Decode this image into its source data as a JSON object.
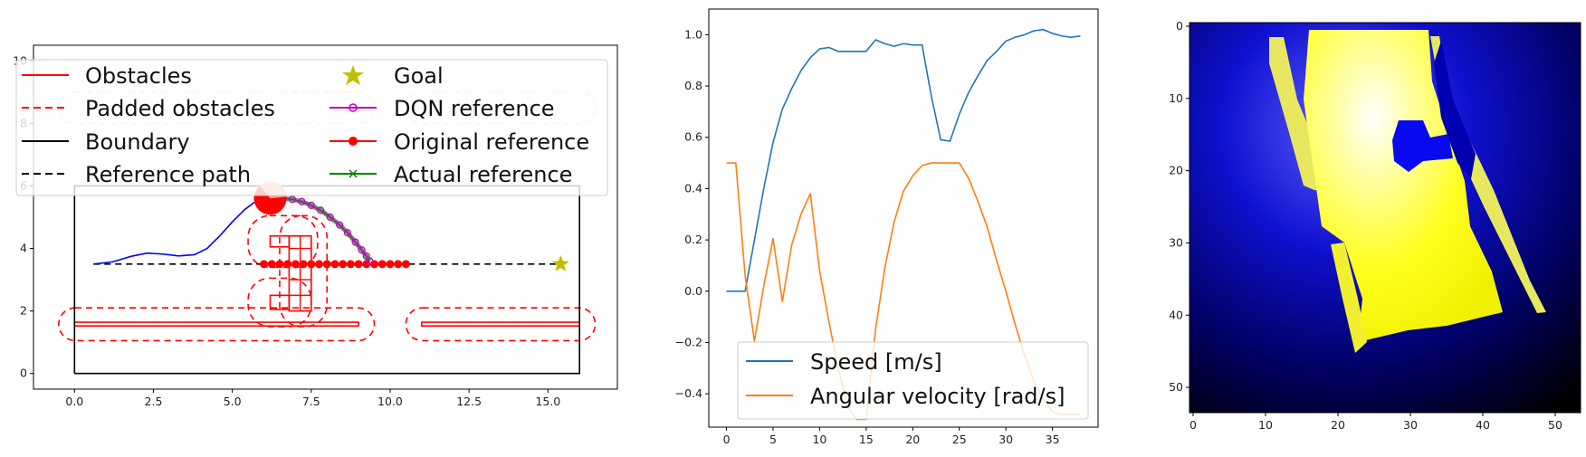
{
  "chart_data": [
    {
      "type": "line",
      "panel": "path-map",
      "xlim": [
        -1.3,
        17.2
      ],
      "ylim": [
        -0.5,
        10.5
      ],
      "x_ticks": [
        0.0,
        2.5,
        5.0,
        7.5,
        10.0,
        12.5,
        15.0
      ],
      "x_tick_labels": [
        "0.0",
        "2.5",
        "5.0",
        "7.5",
        "10.0",
        "12.5",
        "15.0"
      ],
      "y_ticks": [
        0,
        2,
        4,
        6,
        8,
        10
      ],
      "y_tick_labels": [
        "0",
        "2",
        "4",
        "6",
        "8",
        "10"
      ],
      "legend": {
        "position": "top",
        "columns": 2,
        "entries": [
          "Obstacles",
          "Padded obstacles",
          "Boundary",
          "Reference path",
          "Goal",
          "DQN reference",
          "Original reference",
          "Actual reference"
        ]
      },
      "colors": {
        "obstacles": "#ff0000",
        "padded": "#ff0000",
        "boundary": "#000000",
        "reference_path": "#000000",
        "goal": "#bfbf00",
        "dqn": "#bf00bf",
        "original": "#ff0000",
        "actual": "#008000",
        "trajectory": "#0000ff",
        "robot": "#ff0000",
        "robot_wedge": "#f4a582"
      },
      "boundary": [
        [
          0,
          0
        ],
        [
          16,
          0
        ],
        [
          16,
          6
        ],
        [
          0,
          6
        ],
        [
          0,
          0
        ]
      ],
      "reference_path": {
        "x": [
          0.6,
          15.5
        ],
        "y": [
          3.5,
          3.5
        ]
      },
      "goal": {
        "x": 15.4,
        "y": 3.5
      },
      "obstacles": [
        {
          "x": [
            0.0,
            9.0
          ],
          "y": [
            1.52,
            1.64
          ]
        },
        {
          "x": [
            11.0,
            16.0
          ],
          "y": [
            1.52,
            1.64
          ]
        },
        {
          "x": [
            6.2,
            6.8
          ],
          "y": [
            4.05,
            4.4
          ]
        },
        {
          "x": [
            6.8,
            7.5
          ],
          "y": [
            2.0,
            4.4
          ]
        },
        {
          "x": [
            6.2,
            6.8
          ],
          "y": [
            2.05,
            2.5
          ]
        }
      ],
      "padded_obstacles": [
        {
          "x": [
            -0.5,
            9.5
          ],
          "y": [
            1.05,
            2.1
          ]
        },
        {
          "x": [
            10.5,
            16.5
          ],
          "y": [
            1.05,
            2.1
          ]
        },
        {
          "x": [
            5.5,
            7.7
          ],
          "y": [
            3.4,
            5.05
          ]
        },
        {
          "x": [
            6.5,
            8.0
          ],
          "y": [
            1.5,
            5.05
          ]
        },
        {
          "x": [
            5.5,
            7.5
          ],
          "y": [
            1.5,
            3.05
          ]
        },
        {
          "x": [
            -0.5,
            9.5
          ],
          "y": [
            8.0,
            9.0
          ]
        },
        {
          "x": [
            10.5,
            16.5
          ],
          "y": [
            8.0,
            9.0
          ]
        }
      ],
      "trajectory": {
        "x": [
          0.6,
          1.2,
          1.8,
          2.3,
          2.8,
          3.3,
          3.8,
          4.2,
          4.6,
          5.0,
          5.4,
          5.8,
          6.1
        ],
        "y": [
          3.5,
          3.57,
          3.75,
          3.85,
          3.82,
          3.76,
          3.8,
          4.0,
          4.4,
          4.85,
          5.25,
          5.55,
          5.65
        ]
      },
      "robot": {
        "x": 6.2,
        "y": 5.6
      },
      "dqn_reference": {
        "x": [
          6.6,
          6.9,
          7.2,
          7.5,
          7.8,
          8.1,
          8.4,
          8.65,
          8.9,
          9.1,
          9.25,
          9.35
        ],
        "y": [
          5.6,
          5.57,
          5.5,
          5.38,
          5.22,
          5.0,
          4.75,
          4.5,
          4.2,
          3.95,
          3.75,
          3.6
        ]
      },
      "original_reference": {
        "x": [
          6.0,
          6.25,
          6.5,
          6.75,
          7.0,
          7.25,
          7.5,
          7.75,
          8.0,
          8.25,
          8.5,
          8.75,
          9.0,
          9.25,
          9.5,
          9.75,
          10.0,
          10.25,
          10.5
        ],
        "y": [
          3.5,
          3.5,
          3.5,
          3.5,
          3.5,
          3.5,
          3.5,
          3.5,
          3.5,
          3.5,
          3.5,
          3.5,
          3.5,
          3.5,
          3.5,
          3.5,
          3.5,
          3.5,
          3.5
        ]
      }
    },
    {
      "type": "line",
      "panel": "speed-profile",
      "xlim": [
        -1.9,
        39.9
      ],
      "ylim": [
        -0.53,
        1.1
      ],
      "x_ticks": [
        0,
        5,
        10,
        15,
        20,
        25,
        30,
        35
      ],
      "x_tick_labels": [
        "0",
        "5",
        "10",
        "15",
        "20",
        "25",
        "30",
        "35"
      ],
      "y_ticks": [
        -0.4,
        -0.2,
        0.0,
        0.2,
        0.4,
        0.6,
        0.8,
        1.0
      ],
      "y_tick_labels": [
        "−0.4",
        "−0.2",
        "0.0",
        "0.2",
        "0.4",
        "0.6",
        "0.8",
        "1.0"
      ],
      "legend": {
        "position": "lower-right"
      },
      "x": [
        0,
        1,
        2,
        3,
        4,
        5,
        6,
        7,
        8,
        9,
        10,
        11,
        12,
        13,
        14,
        15,
        16,
        17,
        18,
        19,
        20,
        21,
        22,
        23,
        24,
        25,
        26,
        27,
        28,
        29,
        30,
        31,
        32,
        33,
        34,
        35,
        36,
        37,
        38
      ],
      "series": [
        {
          "name": "Speed [m/s]",
          "color": "#1f77b4",
          "values": [
            0.0,
            0.0,
            0.0,
            0.2,
            0.4,
            0.58,
            0.71,
            0.79,
            0.86,
            0.91,
            0.945,
            0.95,
            0.935,
            0.935,
            0.935,
            0.935,
            0.98,
            0.965,
            0.955,
            0.965,
            0.96,
            0.96,
            0.76,
            0.59,
            0.585,
            0.69,
            0.775,
            0.84,
            0.9,
            0.935,
            0.975,
            0.99,
            1.0,
            1.015,
            1.02,
            1.005,
            0.995,
            0.99,
            0.995
          ]
        },
        {
          "name": "Angular velocity [rad/s]",
          "color": "#ff7f0e",
          "values": [
            0.5,
            0.5,
            0.06,
            -0.195,
            0.02,
            0.205,
            -0.04,
            0.18,
            0.3,
            0.38,
            0.08,
            -0.12,
            -0.3,
            -0.45,
            -0.5,
            -0.5,
            -0.15,
            0.09,
            0.27,
            0.39,
            0.45,
            0.49,
            0.5,
            0.5,
            0.5,
            0.5,
            0.44,
            0.35,
            0.25,
            0.12,
            0.0,
            -0.13,
            -0.25,
            -0.35,
            -0.42,
            -0.47,
            -0.48,
            -0.48,
            -0.48
          ]
        }
      ]
    },
    {
      "type": "heatmap",
      "panel": "occupancy-grid",
      "xlim": [
        -0.5,
        53.5
      ],
      "ylim": [
        53.5,
        -0.5
      ],
      "x_ticks": [
        0,
        10,
        20,
        30,
        40,
        50
      ],
      "x_tick_labels": [
        "0",
        "10",
        "20",
        "30",
        "40",
        "50"
      ],
      "y_ticks": [
        0,
        10,
        20,
        30,
        40,
        50
      ],
      "y_tick_labels": [
        "0",
        "10",
        "20",
        "30",
        "40",
        "50"
      ],
      "colormap": [
        "#000000",
        "#00007f",
        "#0000ff",
        "#8080ff",
        "#ffffff",
        "#ffff80",
        "#ffff00"
      ],
      "description_values": "free-space yellow region centred near column 30, row 15, with blue obstacle pocket"
    }
  ]
}
